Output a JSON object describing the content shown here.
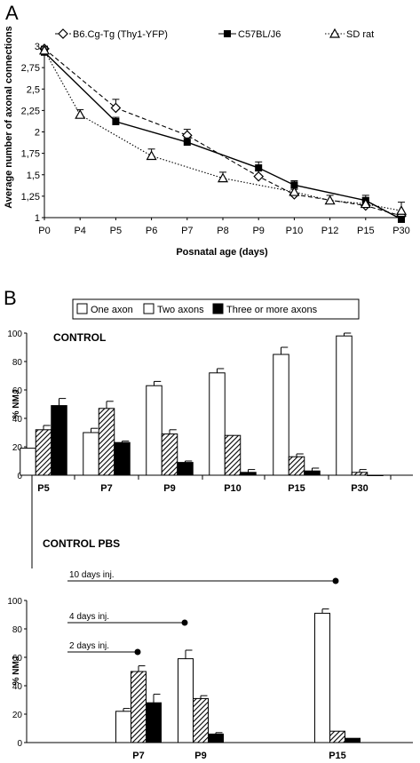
{
  "panel_labels": [
    "A",
    "B"
  ],
  "chart_data": [
    {
      "type": "line",
      "panel": "A",
      "categories": [
        "P0",
        "P4",
        "P5",
        "P6",
        "P7",
        "P8",
        "P9",
        "P10",
        "P12",
        "P15",
        "P30"
      ],
      "ylabel": "Average number of axonal connections",
      "xlabel": "Posnatal age (days)",
      "ylim": [
        1,
        3
      ],
      "yticks": [
        "1",
        "1,25",
        "1,5",
        "1,75",
        "2",
        "2,25",
        "2,5",
        "2,75",
        "3"
      ],
      "grid": false,
      "legend_position": "top",
      "series": [
        {
          "name": "B6.Cg-Tg (Thy1-YFP)",
          "marker": "diamond-open",
          "line": "dashed",
          "color": "#000000",
          "x": [
            "P0",
            "P5",
            "P7",
            "P9",
            "P10",
            "P15",
            "P30"
          ],
          "values": [
            2.97,
            2.28,
            1.96,
            1.48,
            1.27,
            1.14,
            1.02
          ],
          "errors": [
            0.03,
            0.1,
            0.07,
            0.07,
            0.06,
            0.06,
            0.03
          ]
        },
        {
          "name": "C57BL/J6",
          "marker": "square-filled",
          "line": "solid",
          "color": "#000000",
          "x": [
            "P0",
            "P5",
            "P7",
            "P9",
            "P10",
            "P15",
            "P30"
          ],
          "values": [
            2.93,
            2.12,
            1.88,
            1.58,
            1.38,
            1.2,
            0.98
          ],
          "errors": [
            0.04,
            0.05,
            0.05,
            0.07,
            0.05,
            0.06,
            0.02
          ]
        },
        {
          "name": "SD rat",
          "marker": "triangle-open",
          "line": "dotted",
          "color": "#000000",
          "x": [
            "P0",
            "P4",
            "P6",
            "P8",
            "P10",
            "P12",
            "P15",
            "P30"
          ],
          "values": [
            2.95,
            2.2,
            1.72,
            1.46,
            1.3,
            1.2,
            1.16,
            1.08
          ],
          "errors": [
            0.04,
            0.06,
            0.08,
            0.07,
            0.05,
            0.06,
            0.07,
            0.1
          ]
        }
      ]
    },
    {
      "type": "bar",
      "panel": "B-top",
      "title": "CONTROL",
      "ylabel": "% NMJ",
      "categories": [
        "P5",
        "P7",
        "P9",
        "P10",
        "P15",
        "P30"
      ],
      "ylim": [
        0,
        100
      ],
      "yticks": [
        "0",
        "20",
        "40",
        "60",
        "80",
        "100"
      ],
      "legend_position": "top",
      "series": [
        {
          "name": "One axon",
          "fill": "white",
          "values": [
            19,
            30,
            63,
            72,
            85,
            98
          ],
          "errors": [
            0,
            3,
            3,
            3,
            5,
            2
          ]
        },
        {
          "name": "Two axons",
          "fill": "hatched",
          "values": [
            32,
            47,
            29,
            28,
            13,
            2
          ],
          "errors": [
            3,
            5,
            3,
            0,
            2,
            2
          ]
        },
        {
          "name": "Three or more axons",
          "fill": "black",
          "values": [
            49,
            23,
            9,
            2,
            3,
            0
          ],
          "errors": [
            5,
            1,
            1,
            2,
            2,
            0
          ]
        }
      ]
    },
    {
      "type": "bar",
      "panel": "B-bottom",
      "title": "CONTROL PBS",
      "ylabel": "% NMJ",
      "categories": [
        "P7",
        "P9",
        "P15"
      ],
      "ylim": [
        0,
        100
      ],
      "yticks": [
        "0",
        "20",
        "40",
        "60",
        "80",
        "100"
      ],
      "annotations": [
        "10 days inj.",
        "4 days inj.",
        "2 days inj."
      ],
      "series": [
        {
          "name": "One axon",
          "fill": "white",
          "values": [
            22,
            59,
            91
          ],
          "errors": [
            2,
            6,
            3
          ]
        },
        {
          "name": "Two axons",
          "fill": "hatched",
          "values": [
            50,
            31,
            8
          ],
          "errors": [
            4,
            2,
            0
          ]
        },
        {
          "name": "Three or more axons",
          "fill": "black",
          "values": [
            28,
            6,
            3
          ],
          "errors": [
            6,
            1,
            0
          ]
        }
      ]
    }
  ]
}
